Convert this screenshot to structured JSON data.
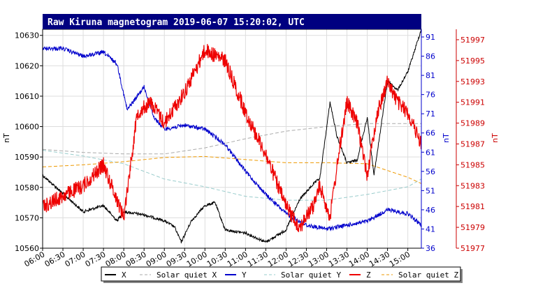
{
  "chart_data": {
    "type": "line",
    "title": "Raw Kiruna magnetogram 2019-06-07 15:20:02, UTC",
    "x_ticks": [
      "06:00",
      "06:30",
      "07:00",
      "07:30",
      "08:00",
      "08:30",
      "09:00",
      "09:30",
      "10:00",
      "10:30",
      "11:00",
      "11:30",
      "12:00",
      "12:30",
      "13:00",
      "13:30",
      "14:00",
      "14:30",
      "15:00"
    ],
    "xlim": [
      "06:00",
      "15:20"
    ],
    "grid": true,
    "axes": {
      "left": {
        "label": "nT",
        "ylim": [
          10560,
          10632
        ],
        "ticks": [
          10560,
          10570,
          10580,
          10590,
          10600,
          10610,
          10620,
          10630
        ],
        "color": "#000000"
      },
      "mid": {
        "label": "nT",
        "ylim": [
          36,
          93
        ],
        "ticks": [
          36,
          41,
          46,
          51,
          56,
          61,
          66,
          71,
          76,
          81,
          86,
          91
        ],
        "color": "#0000cc"
      },
      "right": {
        "label": "nT",
        "ylim": [
          51977,
          51998
        ],
        "ticks": [
          51977,
          51979,
          51981,
          51983,
          51985,
          51987,
          51989,
          51991,
          51993,
          51995,
          51997
        ],
        "color": "#cc0000"
      }
    },
    "series": [
      {
        "name": "X",
        "axis": "left",
        "color": "#000000",
        "style": "solid",
        "x": [
          "06:00",
          "06:30",
          "07:00",
          "07:30",
          "07:50",
          "08:00",
          "08:30",
          "09:00",
          "09:15",
          "09:25",
          "09:40",
          "10:00",
          "10:15",
          "10:30",
          "11:00",
          "11:30",
          "12:00",
          "12:20",
          "12:40",
          "12:50",
          "13:05",
          "13:15",
          "13:30",
          "13:45",
          "14:00",
          "14:10",
          "14:30",
          "14:45",
          "15:00",
          "15:20"
        ],
        "y": [
          10584,
          10578,
          10572,
          10574,
          10569,
          10572,
          10571,
          10569,
          10567,
          10562,
          10569,
          10574,
          10575,
          10566,
          10565,
          10562,
          10566,
          10576,
          10581,
          10583,
          10608,
          10597,
          10588,
          10589,
          10603,
          10584,
          10615,
          10612,
          10618,
          10632
        ]
      },
      {
        "name": "Solar quiet X",
        "axis": "left",
        "color": "#aaaaaa",
        "style": "dashed",
        "x": [
          "06:00",
          "07:00",
          "08:00",
          "09:00",
          "10:00",
          "11:00",
          "12:00",
          "13:00",
          "14:00",
          "15:00",
          "15:20"
        ],
        "y": [
          10592.5,
          10591.5,
          10591,
          10591,
          10593,
          10596,
          10598.5,
          10600,
          10601,
          10601,
          10601
        ]
      },
      {
        "name": "Y",
        "axis": "mid",
        "color": "#0000cc",
        "style": "solid",
        "x": [
          "06:00",
          "06:30",
          "07:00",
          "07:30",
          "07:50",
          "08:05",
          "08:30",
          "08:45",
          "09:00",
          "09:30",
          "10:00",
          "10:30",
          "11:00",
          "11:30",
          "12:00",
          "12:30",
          "13:00",
          "13:30",
          "14:00",
          "14:30",
          "15:00",
          "15:20"
        ],
        "y": [
          88,
          88,
          86,
          87,
          84,
          72,
          78,
          70,
          67,
          68,
          67,
          63,
          56,
          50,
          45,
          42,
          41,
          42,
          43,
          46,
          45,
          42
        ]
      },
      {
        "name": "Solar quiet Y",
        "axis": "mid",
        "color": "#99cccc",
        "style": "dashed",
        "x": [
          "06:00",
          "07:00",
          "08:00",
          "09:00",
          "10:00",
          "11:00",
          "12:00",
          "13:00",
          "14:00",
          "15:00",
          "15:20"
        ],
        "y": [
          61.5,
          60,
          58,
          54,
          52,
          49.5,
          48.5,
          48.5,
          50,
          52,
          54
        ]
      },
      {
        "name": "Z",
        "axis": "right",
        "color": "#ee0000",
        "style": "solid",
        "x": [
          "06:00",
          "06:30",
          "07:00",
          "07:30",
          "08:00",
          "08:20",
          "08:40",
          "09:00",
          "09:30",
          "10:00",
          "10:30",
          "11:00",
          "11:30",
          "12:00",
          "12:20",
          "12:40",
          "12:50",
          "13:05",
          "13:20",
          "13:30",
          "13:45",
          "14:00",
          "14:15",
          "14:30",
          "14:45",
          "15:00",
          "15:20"
        ],
        "y": [
          51981,
          51982,
          51983,
          51985,
          51980,
          51990,
          51991,
          51989,
          51992,
          51996,
          51995,
          51990,
          51986,
          51981,
          51979,
          51981,
          51983,
          51980,
          51987,
          51991,
          51989,
          51984,
          51990,
          51993,
          51991,
          51990,
          51987
        ]
      },
      {
        "name": "Solar quiet Z",
        "axis": "right",
        "color": "#ee9900",
        "style": "dashed",
        "x": [
          "06:00",
          "07:00",
          "08:00",
          "09:00",
          "10:00",
          "11:00",
          "12:00",
          "13:00",
          "14:00",
          "15:00",
          "15:20"
        ],
        "y": [
          51984.8,
          51985,
          51985.3,
          51985.7,
          51985.8,
          51985.5,
          51985.2,
          51985.2,
          51985.1,
          51983.8,
          51983.2
        ]
      }
    ]
  }
}
